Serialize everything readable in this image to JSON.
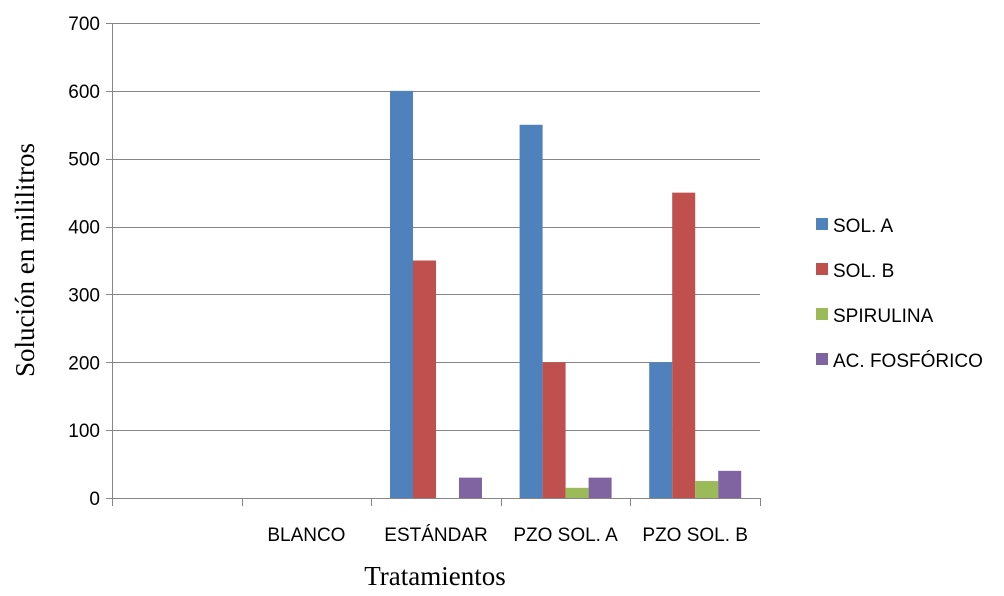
{
  "chart_data": {
    "type": "bar",
    "title": "",
    "xlabel": "Tratamientos",
    "ylabel": "Solución en mililitros",
    "ylim": [
      0,
      700
    ],
    "yticks": [
      0,
      100,
      200,
      300,
      400,
      500,
      600,
      700
    ],
    "grid": true,
    "legend_position": "right",
    "categories": [
      "",
      "BLANCO",
      "ESTÁNDAR",
      "PZO SOL. A",
      "PZO SOL. B"
    ],
    "series": [
      {
        "name": "SOL. A",
        "color": "#4f81bd",
        "values": [
          0,
          0,
          600,
          550,
          200
        ]
      },
      {
        "name": "SOL. B",
        "color": "#c0504d",
        "values": [
          0,
          0,
          350,
          200,
          450
        ]
      },
      {
        "name": "SPIRULINA",
        "color": "#9bbb59",
        "values": [
          0,
          0,
          0,
          15,
          25
        ]
      },
      {
        "name": "AC. FOSFÓRICO",
        "color": "#8064a2",
        "values": [
          0,
          0,
          30,
          30,
          40
        ]
      }
    ]
  }
}
